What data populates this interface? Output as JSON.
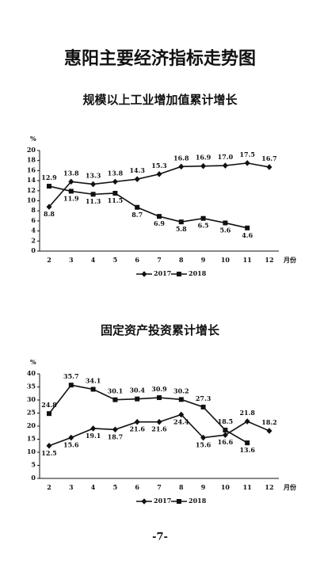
{
  "title": "惠阳主要经济指标走势图",
  "page_number": "-7-",
  "chart_data": [
    {
      "type": "line",
      "title": "规模以上工业增加值累计增长",
      "ylabel": "%",
      "xlabel": "月份",
      "categories": [
        2,
        3,
        4,
        5,
        6,
        7,
        8,
        9,
        10,
        11,
        12
      ],
      "ylim": [
        0,
        20
      ],
      "yticks": [
        0,
        2,
        4,
        6,
        8,
        10,
        12,
        14,
        16,
        18,
        20
      ],
      "series": [
        {
          "name": "2017",
          "color": "#111111",
          "marker": "diamond",
          "values": [
            8.8,
            13.8,
            13.3,
            13.8,
            14.3,
            15.3,
            16.8,
            16.9,
            17.0,
            17.5,
            16.7
          ],
          "value_labels": [
            "8.8",
            "13.8",
            "13.3",
            "13.8",
            "14.3",
            "15.3",
            "16.8",
            "16.9",
            "17.0",
            "17.5",
            "16.7"
          ]
        },
        {
          "name": "2018",
          "color": "#111111",
          "marker": "square",
          "values": [
            12.9,
            11.9,
            11.3,
            11.5,
            8.7,
            6.9,
            5.8,
            6.5,
            5.6,
            4.6,
            null
          ],
          "value_labels": [
            "12.9",
            "11.9",
            "11.3",
            "11.5",
            "8.7",
            "6.9",
            "5.8",
            "6.5",
            "5.6",
            "4.6",
            null
          ]
        }
      ]
    },
    {
      "type": "line",
      "title": "固定资产投资累计增长",
      "ylabel": "%",
      "xlabel": "月份",
      "categories": [
        2,
        3,
        4,
        5,
        6,
        7,
        8,
        9,
        10,
        11,
        12
      ],
      "ylim": [
        0,
        40
      ],
      "yticks": [
        0,
        5,
        10,
        15,
        20,
        25,
        30,
        35,
        40
      ],
      "series": [
        {
          "name": "2017",
          "color": "#111111",
          "marker": "diamond",
          "values": [
            12.5,
            15.6,
            19.1,
            18.7,
            21.6,
            21.6,
            24.4,
            15.6,
            16.6,
            21.8,
            18.2
          ],
          "value_labels": [
            "12.5",
            "15.6",
            "19.1",
            "18.7",
            "21.6",
            "21.6",
            "24.4",
            "15.6",
            "16.6",
            "21.8",
            "18.2"
          ]
        },
        {
          "name": "2018",
          "color": "#111111",
          "marker": "square",
          "values": [
            24.8,
            35.7,
            34.1,
            30.1,
            30.4,
            30.9,
            30.2,
            27.3,
            18.5,
            13.6,
            null
          ],
          "value_labels": [
            "24.8",
            "35.7",
            "34.1",
            "30.1",
            "30.4",
            "30.9",
            "30.2",
            "27.3",
            "18.5",
            "13.6",
            null
          ]
        }
      ]
    }
  ]
}
